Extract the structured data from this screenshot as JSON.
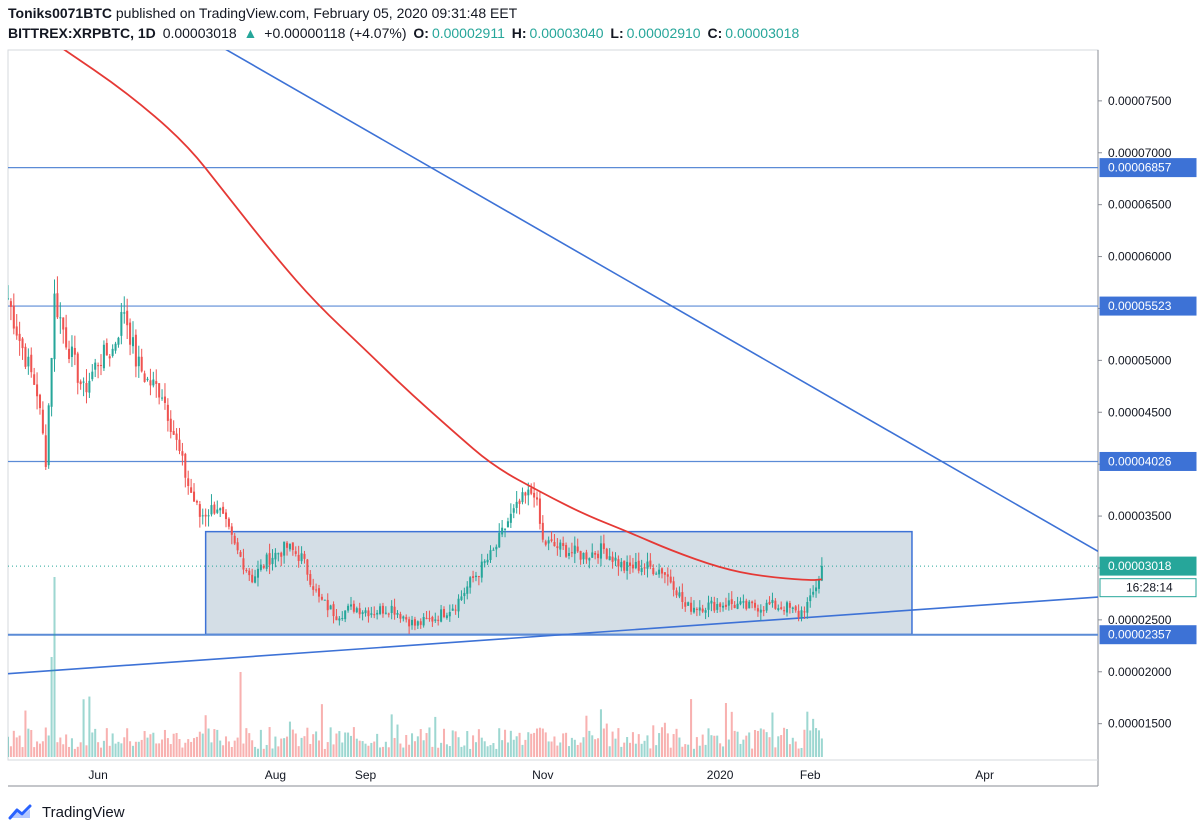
{
  "header": {
    "author": "Toniks0071BTC",
    "published_text": "published on TradingView.com, February 05, 2020 09:31:48 EET",
    "symbol": "BITTREX:XRPBTC, 1D",
    "last": "0.00003018",
    "change": "+0.00000118 (+4.07%)",
    "open_label": "O:",
    "open": "0.00002911",
    "high_label": "H:",
    "high": "0.00003040",
    "low_label": "L:",
    "low": "0.00002910",
    "close_label": "C:",
    "close": "0.00003018"
  },
  "footer": {
    "brand": "TradingView"
  },
  "colors": {
    "up": "#26a69a",
    "down": "#ef5350",
    "ma": "#e53935",
    "trend": "#3d72d6",
    "level": "#5b8bd6",
    "box_fill": "#c5d3de",
    "box_stroke": "#3d72d6"
  },
  "chart_data": {
    "type": "candlestick",
    "x_axis": {
      "labels": [
        "Jun",
        "Aug",
        "Sep",
        "Nov",
        "2020",
        "Feb",
        "Apr"
      ],
      "dates": [
        "2019-06-01",
        "2019-08-01",
        "2019-09-01",
        "2019-11-01",
        "2020-01-01",
        "2020-02-01",
        "2020-04-01"
      ],
      "range": [
        "2019-05-01",
        "2020-05-10"
      ]
    },
    "y_axis": {
      "ticks": [
        "0.00001500",
        "0.00002000",
        "0.00002500",
        "0.00003000",
        "0.00003500",
        "0.00004000",
        "0.00004500",
        "0.00005000",
        "0.00005500",
        "0.00006000",
        "0.00006500",
        "0.00007000",
        "0.00007500"
      ],
      "ylim": [
        1.15e-05,
        7.99e-05
      ]
    },
    "price_labels": [
      {
        "text": "0.00006857",
        "value": 6.857e-05,
        "kind": "level"
      },
      {
        "text": "0.00005523",
        "value": 5.523e-05,
        "kind": "level"
      },
      {
        "text": "0.00004026",
        "value": 4.026e-05,
        "kind": "level"
      },
      {
        "text": "0.00003018",
        "value": 3.018e-05,
        "kind": "last"
      },
      {
        "text": "16:28:14",
        "value": 2.81e-05,
        "kind": "countdown"
      },
      {
        "text": "0.00002357",
        "value": 2.357e-05,
        "kind": "level"
      }
    ],
    "horizontal_levels": [
      6.857e-05,
      5.523e-05,
      4.026e-05,
      2.357e-05
    ],
    "range_box": {
      "start": "2019-07-08",
      "end": "2020-03-07",
      "top": 3.35e-05,
      "bottom": 2.36e-05
    },
    "trendlines": [
      {
        "from": {
          "date": "2019-04-25",
          "price": 1.97e-05
        },
        "to": {
          "date": "2020-05-10",
          "price": 2.72e-05
        }
      },
      {
        "from": {
          "date": "2019-07-01",
          "price": 8.22e-05
        },
        "to": {
          "date": "2020-05-10",
          "price": 3.16e-05
        }
      }
    ],
    "moving_average": [
      [
        "2019-05-20",
        8e-05
      ],
      [
        "2019-06-10",
        7.6e-05
      ],
      [
        "2019-07-01",
        7.1e-05
      ],
      [
        "2019-07-15",
        6.6e-05
      ],
      [
        "2019-08-01",
        6e-05
      ],
      [
        "2019-08-15",
        5.55e-05
      ],
      [
        "2019-09-01",
        5.1e-05
      ],
      [
        "2019-09-15",
        4.72e-05
      ],
      [
        "2019-10-01",
        4.32e-05
      ],
      [
        "2019-10-15",
        3.98e-05
      ],
      [
        "2019-11-01",
        3.72e-05
      ],
      [
        "2019-11-15",
        3.52e-05
      ],
      [
        "2019-12-01",
        3.34e-05
      ],
      [
        "2019-12-15",
        3.17e-05
      ],
      [
        "2020-01-01",
        3e-05
      ],
      [
        "2020-01-15",
        2.92e-05
      ],
      [
        "2020-02-01",
        2.88e-05
      ],
      [
        "2020-02-05",
        2.89e-05
      ]
    ],
    "price_anchors": [
      [
        "2019-05-01",
        5.6e-05
      ],
      [
        "2019-05-05",
        5.2e-05
      ],
      [
        "2019-05-11",
        4.7e-05
      ],
      [
        "2019-05-14",
        4.05e-05
      ],
      [
        "2019-05-17",
        5.6e-05
      ],
      [
        "2019-05-21",
        5.2e-05
      ],
      [
        "2019-05-27",
        4.7e-05
      ],
      [
        "2019-06-01",
        5e-05
      ],
      [
        "2019-06-06",
        5.1e-05
      ],
      [
        "2019-06-10",
        5.5e-05
      ],
      [
        "2019-06-14",
        5e-05
      ],
      [
        "2019-06-18",
        4.8e-05
      ],
      [
        "2019-06-23",
        4.7e-05
      ],
      [
        "2019-06-29",
        4.1e-05
      ],
      [
        "2019-07-02",
        3.8e-05
      ],
      [
        "2019-07-06",
        3.5e-05
      ],
      [
        "2019-07-12",
        3.6e-05
      ],
      [
        "2019-07-18",
        3.2e-05
      ],
      [
        "2019-07-24",
        2.9e-05
      ],
      [
        "2019-07-30",
        3.1e-05
      ],
      [
        "2019-08-05",
        3.2e-05
      ],
      [
        "2019-08-10",
        3.1e-05
      ],
      [
        "2019-08-16",
        2.7e-05
      ],
      [
        "2019-08-22",
        2.55e-05
      ],
      [
        "2019-08-28",
        2.62e-05
      ],
      [
        "2019-09-03",
        2.58e-05
      ],
      [
        "2019-09-10",
        2.62e-05
      ],
      [
        "2019-09-18",
        2.45e-05
      ],
      [
        "2019-09-25",
        2.52e-05
      ],
      [
        "2019-10-02",
        2.65e-05
      ],
      [
        "2019-10-08",
        2.9e-05
      ],
      [
        "2019-10-15",
        3.15e-05
      ],
      [
        "2019-10-20",
        3.45e-05
      ],
      [
        "2019-10-25",
        3.65e-05
      ],
      [
        "2019-10-29",
        3.75e-05
      ],
      [
        "2019-11-01",
        3.25e-05
      ],
      [
        "2019-11-08",
        3.18e-05
      ],
      [
        "2019-11-15",
        3.12e-05
      ],
      [
        "2019-11-22",
        3.18e-05
      ],
      [
        "2019-11-29",
        3e-05
      ],
      [
        "2019-12-05",
        3.02e-05
      ],
      [
        "2019-12-12",
        2.98e-05
      ],
      [
        "2019-12-16",
        2.85e-05
      ],
      [
        "2019-12-20",
        2.62e-05
      ],
      [
        "2019-12-28",
        2.64e-05
      ],
      [
        "2020-01-04",
        2.66e-05
      ],
      [
        "2020-01-10",
        2.62e-05
      ],
      [
        "2020-01-18",
        2.64e-05
      ],
      [
        "2020-01-24",
        2.62e-05
      ],
      [
        "2020-01-28",
        2.55e-05
      ],
      [
        "2020-02-01",
        2.68e-05
      ],
      [
        "2020-02-04",
        2.91e-05
      ],
      [
        "2020-02-05",
        3.02e-05
      ]
    ]
  }
}
